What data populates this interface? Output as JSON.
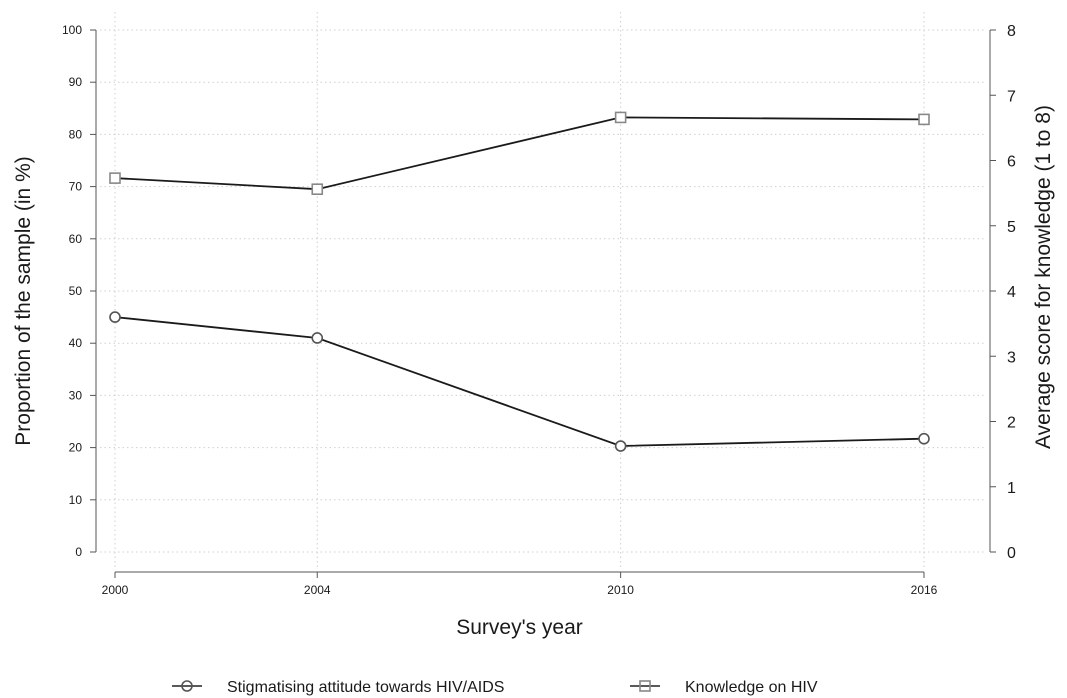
{
  "chart_data": {
    "type": "line",
    "x": [
      2000,
      2004,
      2010,
      2016
    ],
    "xlabel": "Survey's year",
    "x_ticks": [
      "2000",
      "2004",
      "2010",
      "2016"
    ],
    "ylabel": "Proportion of the sample (in %)",
    "ylim": [
      0,
      100
    ],
    "y_ticks": [
      "0",
      "10",
      "20",
      "30",
      "40",
      "50",
      "60",
      "70",
      "80",
      "90",
      "100"
    ],
    "y2label": "Average score for knowledge (1 to 8)",
    "y2lim": [
      0,
      8
    ],
    "y2_ticks": [
      "0",
      "1",
      "2",
      "3",
      "4",
      "5",
      "6",
      "7",
      "8"
    ],
    "grid": true,
    "legend_position": "bottom",
    "series": [
      {
        "name": "Stigmatising attitude towards HIV/AIDS",
        "axis": "left",
        "marker": "circle",
        "values": [
          45.0,
          41.0,
          20.3,
          21.7
        ]
      },
      {
        "name": "Knowledge on HIV",
        "axis": "right",
        "marker": "square",
        "values": [
          5.73,
          5.56,
          6.66,
          6.63
        ]
      }
    ]
  }
}
